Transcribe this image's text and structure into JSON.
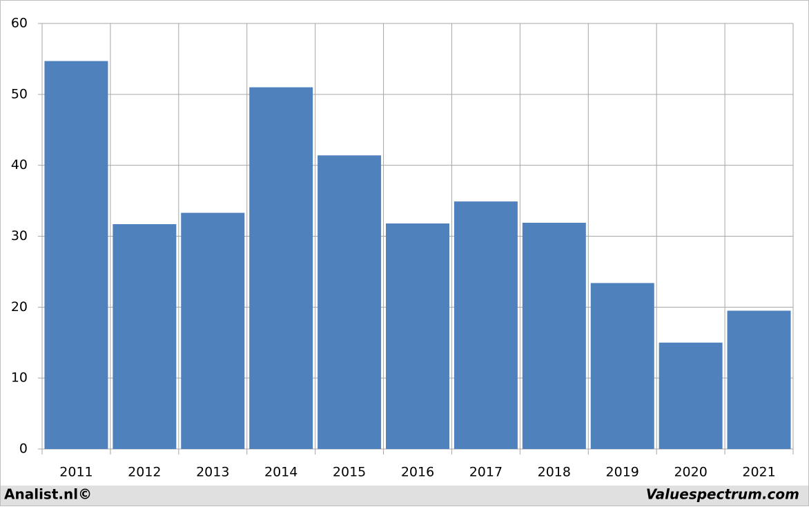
{
  "chart_data": {
    "type": "bar",
    "categories": [
      "2011",
      "2012",
      "2013",
      "2014",
      "2015",
      "2016",
      "2017",
      "2018",
      "2019",
      "2020",
      "2021"
    ],
    "values": [
      54.7,
      31.7,
      33.3,
      51.0,
      41.4,
      31.8,
      34.9,
      31.9,
      23.4,
      15.0,
      19.5
    ],
    "color": "#4f81bd",
    "ylim": [
      0,
      60
    ],
    "yticks": [
      0,
      10,
      20,
      30,
      40,
      50,
      60
    ],
    "grid": true
  },
  "footer": {
    "left": "Analist.nl©",
    "right": "Valuespectrum.com"
  }
}
